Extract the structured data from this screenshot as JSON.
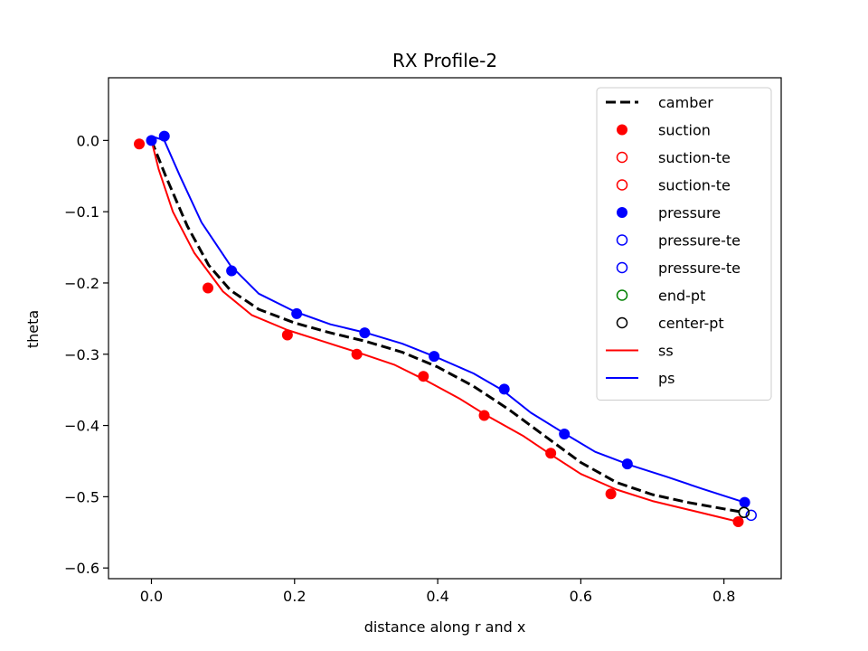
{
  "chart_data": {
    "type": "line",
    "title": "RX Profile-2",
    "xlabel": "distance along r and x",
    "ylabel": "theta",
    "xlim": [
      -0.06,
      0.88
    ],
    "ylim": [
      -0.615,
      0.088
    ],
    "xticks": [
      0.0,
      0.2,
      0.4,
      0.6,
      0.8
    ],
    "xtick_labels": [
      "0.0",
      "0.2",
      "0.4",
      "0.6",
      "0.8"
    ],
    "yticks": [
      0.0,
      -0.1,
      -0.2,
      -0.3,
      -0.4,
      -0.5,
      -0.6
    ],
    "ytick_labels": [
      "0.0",
      "−0.1",
      "−0.2",
      "−0.3",
      "−0.4",
      "−0.5",
      "−0.6"
    ],
    "grid": false,
    "legend_position": "top-right",
    "series": [
      {
        "name": "camber",
        "kind": "line",
        "color": "#000000",
        "dashed": true,
        "x": [
          0.0,
          0.02,
          0.05,
          0.08,
          0.11,
          0.15,
          0.2,
          0.25,
          0.3,
          0.35,
          0.4,
          0.45,
          0.5,
          0.55,
          0.6,
          0.65,
          0.7,
          0.75,
          0.8,
          0.828
        ],
        "y": [
          0.0,
          -0.05,
          -0.12,
          -0.175,
          -0.21,
          -0.237,
          -0.256,
          -0.27,
          -0.282,
          -0.297,
          -0.318,
          -0.345,
          -0.378,
          -0.415,
          -0.452,
          -0.48,
          -0.497,
          -0.508,
          -0.517,
          -0.522
        ]
      },
      {
        "name": "suction",
        "kind": "points",
        "color": "#ff0000",
        "filled": true,
        "x": [
          -0.017,
          0.079,
          0.19,
          0.287,
          0.38,
          0.465,
          0.558,
          0.642,
          0.82
        ],
        "y": [
          -0.005,
          -0.207,
          -0.273,
          -0.3,
          -0.331,
          -0.386,
          -0.439,
          -0.496,
          -0.535
        ]
      },
      {
        "name": "suction-te",
        "kind": "points",
        "color": "#ff0000",
        "filled": false,
        "x": [],
        "y": []
      },
      {
        "name": "suction-te",
        "kind": "points",
        "color": "#ff0000",
        "filled": false,
        "x": [],
        "y": []
      },
      {
        "name": "pressure",
        "kind": "points",
        "color": "#0000ff",
        "filled": true,
        "x": [
          0.0,
          0.018,
          0.112,
          0.203,
          0.298,
          0.395,
          0.493,
          0.577,
          0.665,
          0.829
        ],
        "y": [
          0.0,
          0.006,
          -0.183,
          -0.243,
          -0.27,
          -0.303,
          -0.349,
          -0.412,
          -0.454,
          -0.508
        ]
      },
      {
        "name": "pressure-te",
        "kind": "points",
        "color": "#0000ff",
        "filled": false,
        "x": [
          0.838
        ],
        "y": [
          -0.526
        ]
      },
      {
        "name": "pressure-te",
        "kind": "points",
        "color": "#0000ff",
        "filled": false,
        "x": [],
        "y": []
      },
      {
        "name": "end-pt",
        "kind": "points",
        "color": "#008000",
        "filled": false,
        "x": [
          0.828
        ],
        "y": [
          -0.522
        ]
      },
      {
        "name": "center-pt",
        "kind": "points",
        "color": "#000000",
        "filled": false,
        "x": [
          0.828
        ],
        "y": [
          -0.522
        ]
      },
      {
        "name": "ss",
        "kind": "line",
        "color": "#ff0000",
        "dashed": false,
        "x": [
          0.0,
          0.01,
          0.03,
          0.06,
          0.1,
          0.14,
          0.19,
          0.24,
          0.29,
          0.34,
          0.38,
          0.43,
          0.47,
          0.52,
          0.56,
          0.6,
          0.65,
          0.7,
          0.75,
          0.82
        ],
        "y": [
          0.0,
          -0.04,
          -0.1,
          -0.158,
          -0.212,
          -0.245,
          -0.266,
          -0.282,
          -0.298,
          -0.315,
          -0.335,
          -0.362,
          -0.387,
          -0.415,
          -0.442,
          -0.468,
          -0.49,
          -0.506,
          -0.518,
          -0.535
        ]
      },
      {
        "name": "ps",
        "kind": "line",
        "color": "#0000ff",
        "dashed": false,
        "x": [
          0.0,
          0.018,
          0.04,
          0.07,
          0.11,
          0.15,
          0.2,
          0.25,
          0.3,
          0.35,
          0.4,
          0.45,
          0.49,
          0.53,
          0.58,
          0.62,
          0.67,
          0.72,
          0.77,
          0.829
        ],
        "y": [
          0.006,
          0.0,
          -0.05,
          -0.115,
          -0.175,
          -0.215,
          -0.24,
          -0.258,
          -0.27,
          -0.285,
          -0.305,
          -0.327,
          -0.35,
          -0.382,
          -0.413,
          -0.437,
          -0.456,
          -0.472,
          -0.489,
          -0.508
        ]
      }
    ]
  }
}
